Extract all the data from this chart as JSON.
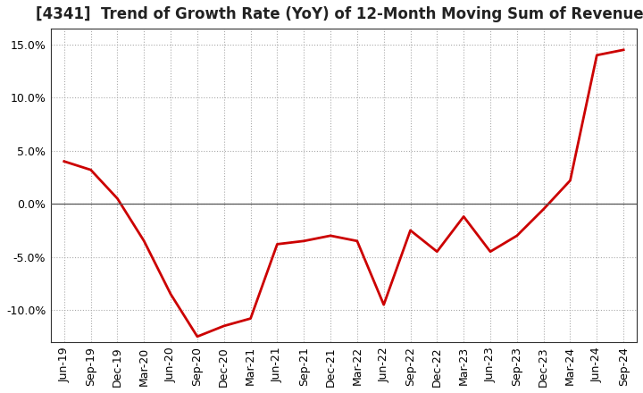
{
  "title": "[4341]  Trend of Growth Rate (YoY) of 12-Month Moving Sum of Revenues",
  "x_labels": [
    "Jun-19",
    "Sep-19",
    "Dec-19",
    "Mar-20",
    "Jun-20",
    "Sep-20",
    "Dec-20",
    "Mar-21",
    "Jun-21",
    "Sep-21",
    "Dec-21",
    "Mar-22",
    "Jun-22",
    "Sep-22",
    "Dec-22",
    "Mar-23",
    "Jun-23",
    "Sep-23",
    "Dec-23",
    "Mar-24",
    "Jun-24",
    "Sep-24"
  ],
  "y_values": [
    4.0,
    3.2,
    0.5,
    -3.5,
    -8.5,
    -12.5,
    -11.5,
    -10.8,
    -3.8,
    -3.5,
    -3.0,
    -3.5,
    -9.5,
    -2.5,
    -4.5,
    -1.2,
    -4.5,
    -3.0,
    -0.5,
    2.2,
    14.0,
    14.5
  ],
  "line_color": "#cc0000",
  "line_width": 2.0,
  "ylim": [
    -13.0,
    16.5
  ],
  "yticks": [
    -10.0,
    -5.0,
    0.0,
    5.0,
    10.0,
    15.0
  ],
  "ytick_labels": [
    "-10.0%",
    "-5.0%",
    "0.0%",
    "5.0%",
    "10.0%",
    "15.0%"
  ],
  "bg_color": "#ffffff",
  "plot_bg_color": "#ffffff",
  "grid_color": "#aaaaaa",
  "title_fontsize": 12,
  "tick_fontsize": 9,
  "zero_line_color": "#555555",
  "spine_color": "#333333"
}
